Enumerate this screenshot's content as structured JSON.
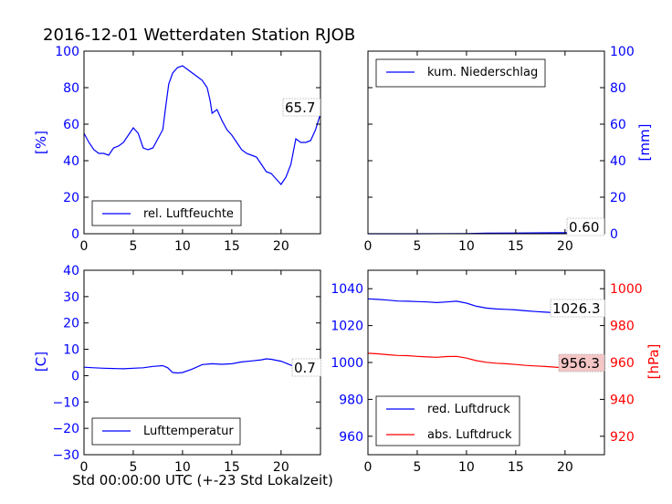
{
  "title": "2016-12-01 Wetterdaten Station RJOB",
  "xlabel": "Std 00:00:00 UTC (+-23 Std Lokalzeit)",
  "colors": {
    "blue": "#0000ff",
    "red": "#ff0000",
    "axis": "#000000"
  },
  "x_ticks": [
    "0",
    "5",
    "10",
    "15",
    "20"
  ],
  "chart_data": [
    {
      "type": "line",
      "ylabel": "[%]",
      "xlim": [
        0,
        24
      ],
      "ylim": [
        0,
        100
      ],
      "y_ticks": [
        "0",
        "20",
        "40",
        "60",
        "80",
        "100"
      ],
      "annotation": "65.7",
      "legend_position": "lower-left",
      "series": [
        {
          "name": "rel. Luftfeuchte",
          "color": "#0000ff",
          "x": [
            0,
            0.5,
            1,
            1.5,
            2,
            2.5,
            3,
            3.5,
            4,
            4.5,
            5,
            5.5,
            6,
            6.5,
            7,
            7.5,
            8,
            8.3,
            8.6,
            9,
            9.5,
            10,
            10.5,
            11,
            11.5,
            12,
            12.5,
            12.8,
            13,
            13.5,
            14,
            14.5,
            15,
            15.5,
            16,
            16.5,
            17,
            17.5,
            18,
            18.5,
            19,
            19.5,
            20,
            20.5,
            21,
            21.5,
            22,
            22.5,
            23,
            23.5,
            24
          ],
          "y": [
            55,
            50,
            46,
            44,
            44,
            43,
            47,
            48,
            50,
            54,
            58,
            55,
            47,
            46,
            47,
            52,
            57,
            70,
            82,
            88,
            91,
            92,
            90,
            88,
            86,
            84,
            80,
            73,
            66,
            68,
            62,
            57,
            54,
            50,
            46,
            44,
            43,
            42,
            38,
            34,
            33,
            30,
            27,
            31,
            38,
            52,
            50,
            50,
            51,
            57,
            65.7
          ]
        }
      ]
    },
    {
      "type": "line",
      "ylabel": "[mm]",
      "xlim": [
        0,
        24
      ],
      "ylim": [
        0,
        100
      ],
      "y_ticks": [
        "0",
        "20",
        "40",
        "60",
        "80",
        "100"
      ],
      "annotation": "0.60",
      "legend_position": "upper-left",
      "series": [
        {
          "name": "kum. Niederschlag",
          "color": "#0000ff",
          "x": [
            0,
            5,
            10,
            12,
            15,
            18,
            20,
            22,
            24
          ],
          "y": [
            0,
            0,
            0.1,
            0.3,
            0.4,
            0.5,
            0.55,
            0.6,
            0.6
          ]
        }
      ]
    },
    {
      "type": "line",
      "ylabel": "[C]",
      "xlim": [
        0,
        24
      ],
      "ylim": [
        -30,
        40
      ],
      "y_ticks": [
        "−30",
        "−20",
        "−10",
        "0",
        "10",
        "20",
        "30",
        "40"
      ],
      "annotation": "0.7",
      "legend_position": "lower-left",
      "series": [
        {
          "name": "Lufttemperatur",
          "color": "#0000ff",
          "x": [
            0,
            1,
            2,
            3,
            4,
            5,
            6,
            7,
            8,
            8.5,
            9,
            9.5,
            10,
            11,
            12,
            13,
            14,
            15,
            16,
            17,
            18,
            18.5,
            19,
            20,
            21,
            22,
            23,
            24
          ],
          "y": [
            3.2,
            3,
            2.8,
            2.7,
            2.6,
            2.8,
            3,
            3.5,
            3.8,
            3,
            1.2,
            1,
            1.2,
            2.5,
            4.2,
            4.5,
            4.3,
            4.5,
            5.2,
            5.6,
            6,
            6.4,
            6.2,
            5.5,
            4,
            2.5,
            1.2,
            0.7
          ]
        }
      ]
    },
    {
      "type": "line",
      "ylabel_right": "[hPa]",
      "xlim": [
        0,
        24
      ],
      "ylim": [
        950,
        1050
      ],
      "ylim_right": [
        910,
        1010
      ],
      "y_ticks": [
        "960",
        "980",
        "1000",
        "1020",
        "1040"
      ],
      "y_ticks_right": [
        "920",
        "940",
        "960",
        "980",
        "1000"
      ],
      "annotations": [
        "1026.3",
        "956.3"
      ],
      "legend_position": "lower-left",
      "series": [
        {
          "name": "red. Luftdruck",
          "color": "#0000ff",
          "x": [
            0,
            1,
            2,
            3,
            4,
            5,
            6,
            7,
            8,
            9,
            10,
            11,
            12,
            13,
            14,
            15,
            16,
            17,
            18,
            19,
            20,
            21,
            22,
            23,
            24
          ],
          "y": [
            1034.5,
            1034.2,
            1033.8,
            1033.3,
            1033.2,
            1033.0,
            1032.8,
            1032.5,
            1032.8,
            1033.2,
            1032.2,
            1030.5,
            1029.5,
            1029.0,
            1028.8,
            1028.5,
            1028.0,
            1027.6,
            1027.3,
            1027.0,
            1026.5,
            1026.2,
            1025.8,
            1025.8,
            1026.3
          ]
        },
        {
          "name": "abs. Luftdruck",
          "color": "#ff0000",
          "x": [
            0,
            1,
            2,
            3,
            4,
            5,
            6,
            7,
            8,
            9,
            10,
            11,
            12,
            13,
            14,
            15,
            16,
            17,
            18,
            19,
            20,
            21,
            22,
            23,
            24
          ],
          "y": [
            965.0,
            964.7,
            964.2,
            963.8,
            963.7,
            963.3,
            963.0,
            962.8,
            963.2,
            963.3,
            962.4,
            961.0,
            960.1,
            959.6,
            959.3,
            958.9,
            958.4,
            958.1,
            957.8,
            957.5,
            957.0,
            956.7,
            956.3,
            956.3,
            956.3
          ]
        }
      ]
    }
  ]
}
